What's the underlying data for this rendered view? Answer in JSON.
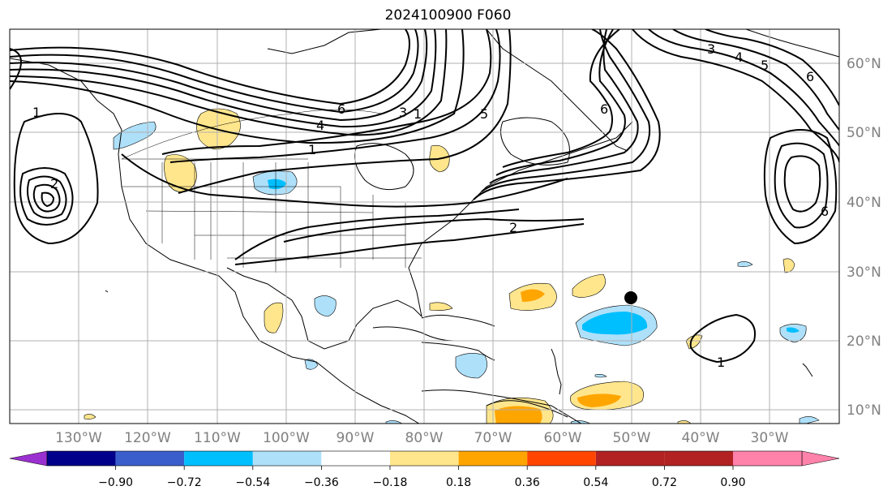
{
  "title": "2024100900 F060",
  "latitude_labels": [
    "10°N",
    "20°N",
    "30°N",
    "40°N",
    "50°N",
    "60°N"
  ],
  "longitude_labels": [
    "130°W",
    "120°W",
    "110°W",
    "100°W",
    "90°W",
    "80°W",
    "70°W",
    "60°W",
    "50°W",
    "40°W",
    "30°W"
  ],
  "colorbar": {
    "ticks": [
      "−0.90",
      "−0.72",
      "−0.54",
      "−0.36",
      "−0.18",
      "0.18",
      "0.36",
      "0.54",
      "0.72",
      "0.90"
    ],
    "colors": [
      "#9b30d0",
      "#00008b",
      "#3a5fcd",
      "#00bfff",
      "#aee0fa",
      "#ffffff",
      "#ffe68c",
      "#ffa500",
      "#ff4500",
      "#b22222",
      "#ff82ab"
    ]
  },
  "contour_labels": [
    "1",
    "2",
    "3",
    "4",
    "5",
    "6",
    "1",
    "2",
    "3",
    "4",
    "5",
    "6",
    "1",
    "6",
    "6",
    "1"
  ],
  "marker": "black-dot"
}
